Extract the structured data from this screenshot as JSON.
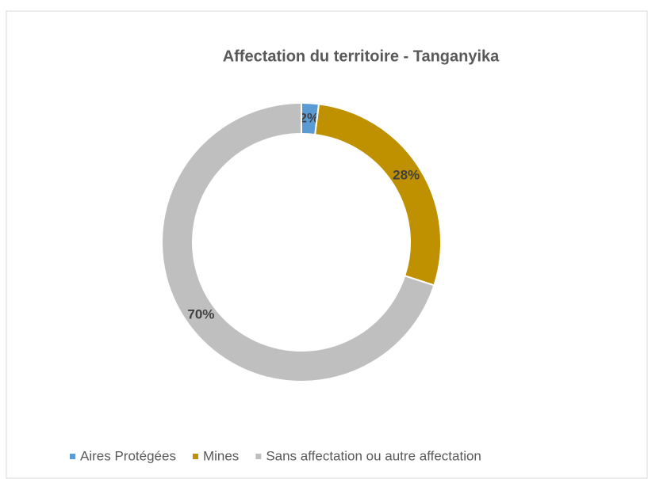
{
  "chart_data": {
    "type": "pie",
    "title": "Affectation du territoire - Tanganyika",
    "categories": [
      "Aires Protégées",
      "Mines",
      "Sans affectation ou autre affectation"
    ],
    "values": [
      2,
      28,
      70
    ],
    "value_labels": [
      "2%",
      "28%",
      "70%"
    ],
    "colors": [
      "#5b9bd5",
      "#bf9000",
      "#bfbfbf"
    ],
    "donut": true,
    "legend": "bottom"
  }
}
